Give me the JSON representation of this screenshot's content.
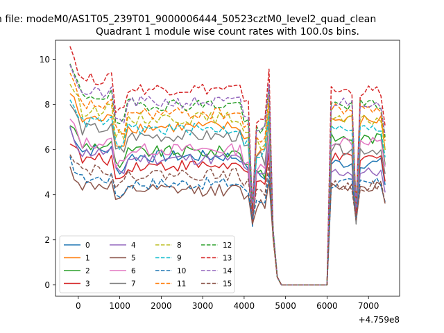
{
  "figure": {
    "suptitle": "n file: modeM0/AS1T05_239T01_9000006444_50523cztM0_level2_quad_clean"
  },
  "chart_data": {
    "type": "line",
    "title": "Quadrant 1 module wise count rates with 100.0s bins.",
    "xlabel": "",
    "ylabel": "",
    "x_offset_label": "+4.759e8",
    "xlim": [
      -550,
      7750
    ],
    "ylim": [
      -0.5,
      10.85
    ],
    "x_ticks": [
      0,
      1000,
      2000,
      3000,
      4000,
      5000,
      6000,
      7000
    ],
    "x_tick_labels": [
      "0",
      "1000",
      "2000",
      "3000",
      "4000",
      "5000",
      "6000",
      "7000"
    ],
    "y_ticks": [
      0,
      2,
      4,
      6,
      8,
      10
    ],
    "y_tick_labels": [
      "0",
      "2",
      "4",
      "6",
      "8",
      "10"
    ],
    "grid": false,
    "legend_position": "lower-left",
    "legend_columns": 4,
    "x_segments": [
      {
        "start": -200,
        "end": 4800,
        "step": 100
      },
      {
        "start": 4900,
        "end": 5900,
        "step": 100
      },
      {
        "start": 6000,
        "end": 7400,
        "step": 100
      }
    ],
    "series": [
      {
        "name": "0",
        "color": "#1f77b4",
        "dash": "solid",
        "seg1_level": 5.7,
        "dip": 2.6,
        "seg3_level": 5.4,
        "seg3_dip": 3.0
      },
      {
        "name": "1",
        "color": "#ff7f0e",
        "dash": "solid",
        "seg1_level": 7.0,
        "dip": 3.3,
        "seg3_level": 7.3,
        "seg3_dip": 3.6
      },
      {
        "name": "2",
        "color": "#2ca02c",
        "dash": "solid",
        "seg1_level": 5.9,
        "dip": 3.0,
        "seg3_level": 6.5,
        "seg3_dip": 3.3
      },
      {
        "name": "3",
        "color": "#d62728",
        "dash": "solid",
        "seg1_level": 5.3,
        "dip": 2.8,
        "seg3_level": 5.6,
        "seg3_dip": 3.0
      },
      {
        "name": "4",
        "color": "#9467bd",
        "dash": "solid",
        "seg1_level": 5.6,
        "dip": 3.0,
        "seg3_level": 5.0,
        "seg3_dip": 3.1
      },
      {
        "name": "5",
        "color": "#8c564b",
        "dash": "solid",
        "seg1_level": 4.2,
        "dip": 2.7,
        "seg3_level": 4.4,
        "seg3_dip": 2.8
      },
      {
        "name": "6",
        "color": "#e377c2",
        "dash": "solid",
        "seg1_level": 6.0,
        "dip": 3.2,
        "seg3_level": 6.4,
        "seg3_dip": 3.3
      },
      {
        "name": "7",
        "color": "#7f7f7f",
        "dash": "solid",
        "seg1_level": 6.6,
        "dip": 3.4,
        "seg3_level": 6.0,
        "seg3_dip": 2.7
      },
      {
        "name": "8",
        "color": "#bcbd22",
        "dash": "dashed",
        "seg1_level": 7.4,
        "dip": 3.4,
        "seg3_level": 7.3,
        "seg3_dip": 3.5
      },
      {
        "name": "9",
        "color": "#17becf",
        "dash": "dashed",
        "seg1_level": 6.9,
        "dip": 3.3,
        "seg3_level": 6.9,
        "seg3_dip": 3.4
      },
      {
        "name": "10",
        "color": "#1f77b4",
        "dash": "dashed",
        "seg1_level": 4.5,
        "dip": 2.9,
        "seg3_level": 4.5,
        "seg3_dip": 2.9
      },
      {
        "name": "11",
        "color": "#ff7f0e",
        "dash": "dashed",
        "seg1_level": 7.6,
        "dip": 3.6,
        "seg3_level": 7.8,
        "seg3_dip": 3.6
      },
      {
        "name": "12",
        "color": "#2ca02c",
        "dash": "dashed",
        "seg1_level": 8.0,
        "dip": 3.5,
        "seg3_level": 8.0,
        "seg3_dip": 3.4
      },
      {
        "name": "13",
        "color": "#d62728",
        "dash": "dashed",
        "seg1_level": 8.7,
        "dip": 3.3,
        "seg3_level": 8.6,
        "seg3_dip": 3.2
      },
      {
        "name": "14",
        "color": "#9467bd",
        "dash": "dashed",
        "seg1_level": 8.1,
        "dip": 3.6,
        "seg3_level": 8.1,
        "seg3_dip": 3.4
      },
      {
        "name": "15",
        "color": "#8c564b",
        "dash": "dashed",
        "seg1_level": 4.9,
        "dip": 3.0,
        "seg3_level": 4.4,
        "seg3_dip": 2.9
      }
    ]
  }
}
